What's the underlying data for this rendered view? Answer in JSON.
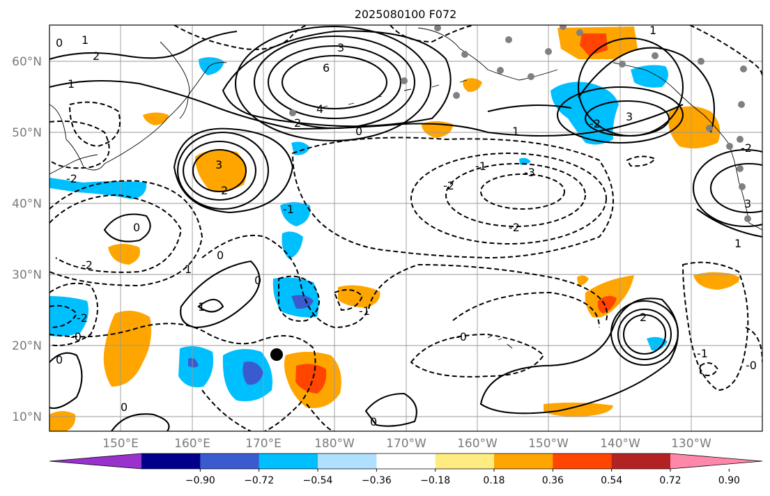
{
  "title": "2025080100 F072",
  "latitude_labels": [
    "60°N",
    "50°N",
    "40°N",
    "30°N",
    "20°N",
    "10°N"
  ],
  "longitude_labels": [
    "150°E",
    "160°E",
    "170°E",
    "180°W",
    "170°W",
    "160°W",
    "150°W",
    "140°W",
    "130°W"
  ],
  "colorbar": {
    "tick_labels": [
      "−0.90",
      "−0.72",
      "−0.54",
      "−0.36",
      "−0.18",
      "0.18",
      "0.36",
      "0.54",
      "0.72",
      "0.90"
    ],
    "colors": [
      "#9932cc",
      "#00008b",
      "#3a5bcf",
      "#00bfff",
      "#b0e0ff",
      "#ffffff",
      "#ffec80",
      "#ffa500",
      "#ff4500",
      "#b22222",
      "#ff88aa"
    ]
  },
  "contour_labels": {
    "positive": [
      "6",
      "4",
      "3",
      "3",
      "3",
      "3",
      "2",
      "2",
      "2",
      "2",
      "1",
      "1",
      "1",
      "1",
      "1",
      "1",
      "1",
      "0",
      "0",
      "0",
      "0",
      "0",
      "0",
      "0",
      "0"
    ],
    "negative": [
      "-3",
      "-2",
      "-2",
      "-2",
      "-2",
      "-2",
      "-2",
      "-2",
      "-1",
      "-1",
      "-1",
      "-1",
      "-0",
      "-0",
      "-0"
    ]
  },
  "map": {
    "extent_lon": [
      140,
      240
    ],
    "extent_lat": [
      8,
      65
    ],
    "markers": [
      {
        "type": "station-dot",
        "color": "#808080"
      },
      {
        "type": "storm-center",
        "color": "#000000"
      }
    ]
  }
}
